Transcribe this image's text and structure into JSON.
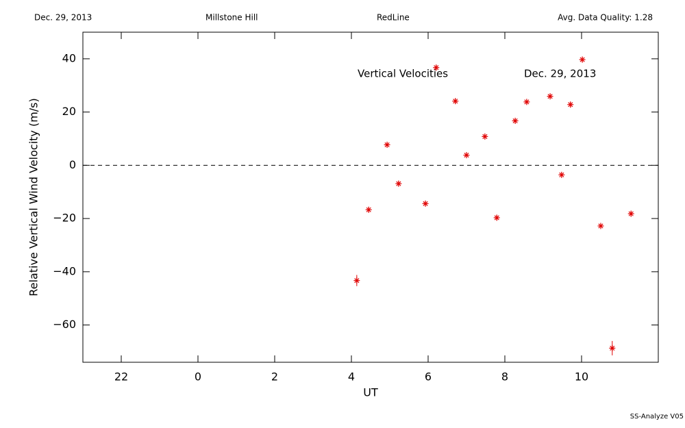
{
  "chart_data": {
    "type": "scatter",
    "header": [
      "Dec. 29, 2013",
      "Millstone Hill",
      "RedLine",
      "Avg. Data Quality: 1.28"
    ],
    "annotations": [
      "Vertical Velocities",
      "Dec. 29, 2013"
    ],
    "footer": "SS-Analyze V05",
    "xlabel": "UT",
    "ylabel": "Relative Vertical Wind Velocity (m/s)",
    "xlim": [
      -3,
      12
    ],
    "ylim": [
      -74,
      50
    ],
    "xticks": [
      {
        "value": -2,
        "label": "22"
      },
      0,
      2,
      4,
      6,
      8,
      10
    ],
    "yticks": [
      {
        "value": -60,
        "label": "−60"
      },
      {
        "value": -40,
        "label": "−40"
      },
      {
        "value": -20,
        "label": "−20"
      },
      0,
      20,
      40
    ],
    "hline": 0,
    "color": "#e00000",
    "x": [
      4.14,
      4.45,
      4.93,
      5.23,
      5.93,
      6.21,
      6.71,
      7.0,
      7.48,
      7.79,
      8.27,
      8.57,
      9.18,
      9.48,
      9.71,
      10.02,
      10.5,
      10.8,
      11.29
    ],
    "values": [
      -43.3,
      -16.7,
      7.7,
      -6.9,
      -14.4,
      36.7,
      24.1,
      3.8,
      10.8,
      -19.7,
      16.7,
      23.8,
      25.9,
      -3.6,
      22.8,
      39.7,
      -22.8,
      -68.7,
      -18.2
    ],
    "errors": [
      2.1,
      1.0,
      1.0,
      1.0,
      1.0,
      1.0,
      1.0,
      1.0,
      1.0,
      1.0,
      1.0,
      1.0,
      1.0,
      1.0,
      1.0,
      1.0,
      1.0,
      2.7,
      1.0
    ]
  }
}
